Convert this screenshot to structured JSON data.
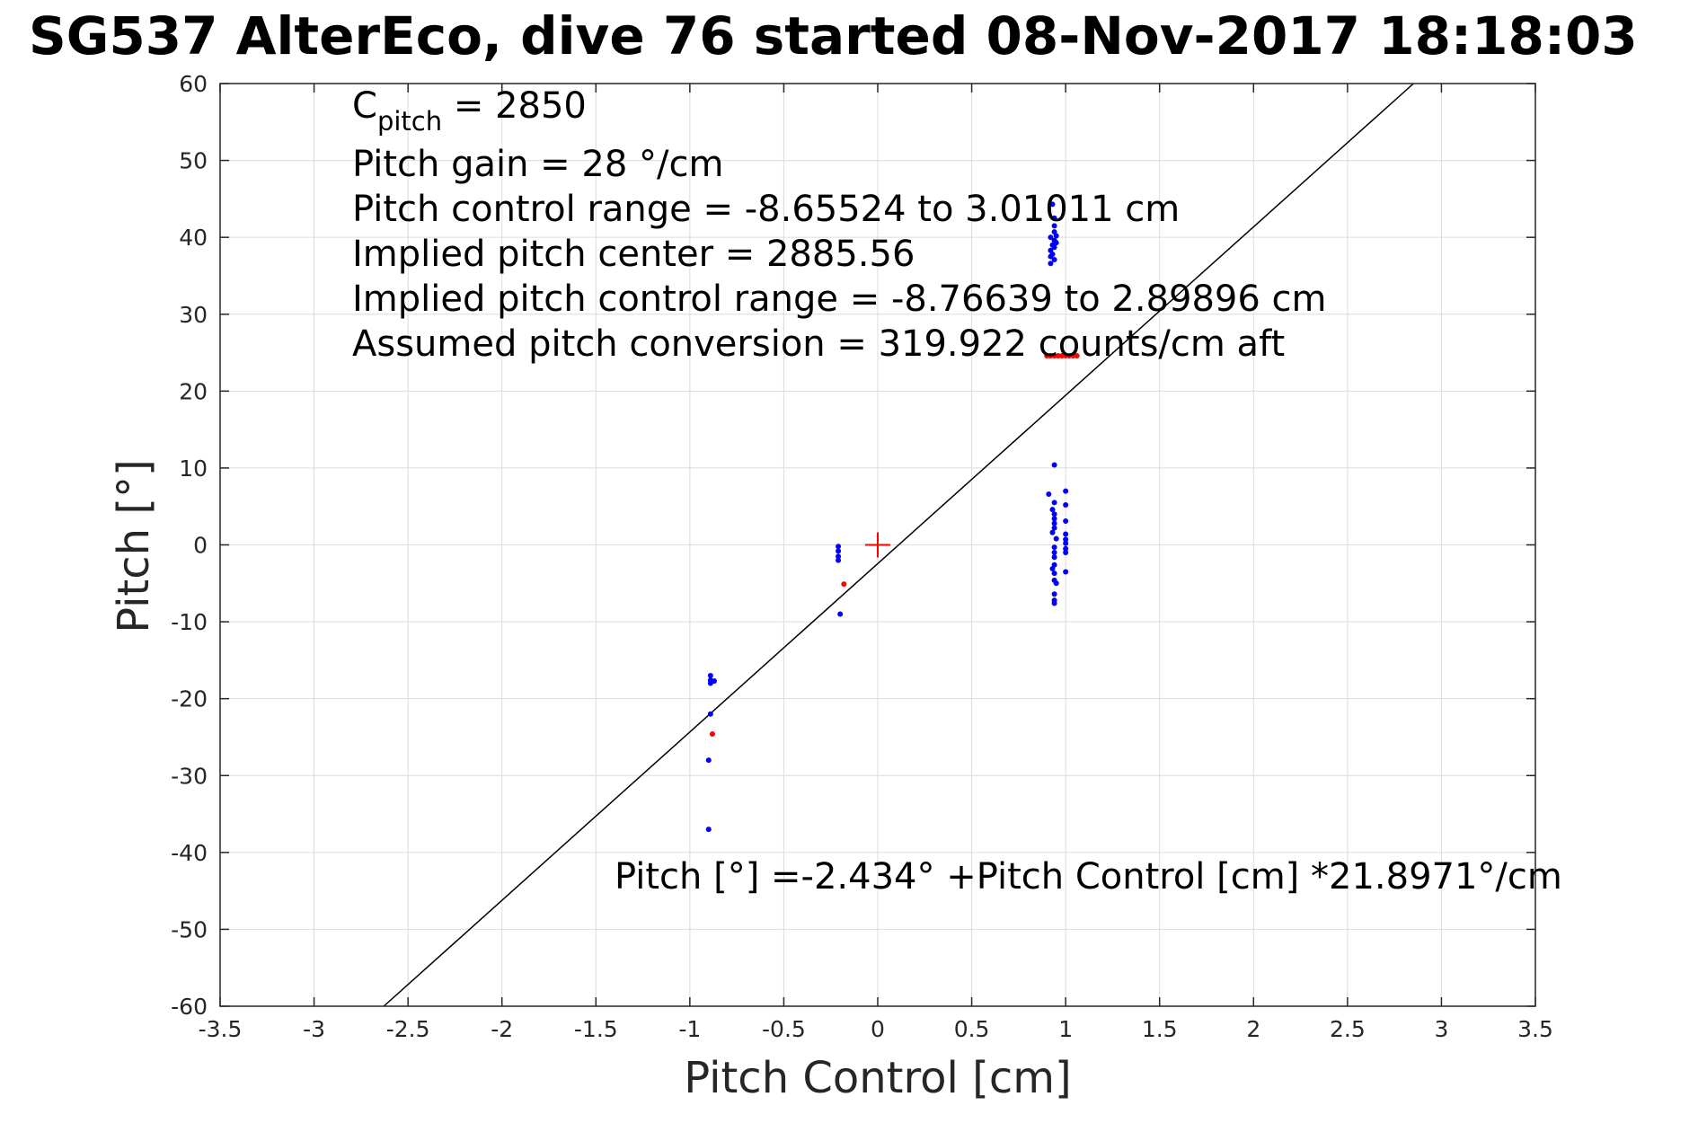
{
  "chart_data": {
    "type": "scatter",
    "title": "SG537 AlterEco, dive 76 started 08-Nov-2017 18:18:03",
    "xlabel": "Pitch Control [cm]",
    "ylabel": "Pitch [°]",
    "xlim": [
      -3.5,
      3.5
    ],
    "ylim": [
      -60,
      60
    ],
    "grid": true,
    "x_ticks": [
      -3.5,
      -3,
      -2.5,
      -2,
      -1.5,
      -1,
      -0.5,
      0,
      0.5,
      1,
      1.5,
      2,
      2.5,
      3,
      3.5
    ],
    "x_tick_labels": [
      "-3.5",
      "-3",
      "-2.5",
      "-2",
      "-1.5",
      "-1",
      "-0.5",
      "0",
      "0.5",
      "1",
      "1.5",
      "2",
      "2.5",
      "3",
      "3.5"
    ],
    "y_ticks": [
      60,
      50,
      40,
      30,
      20,
      10,
      0,
      -10,
      -20,
      -30,
      -40,
      -50,
      -60
    ],
    "y_tick_labels": [
      "60",
      "50",
      "40",
      "30",
      "20",
      "10",
      "0",
      "-10",
      "-20",
      "-30",
      "-40",
      "-50",
      "-60"
    ],
    "annotations": {
      "c_pitch_main": "C",
      "c_pitch_sub": "pitch",
      "c_pitch_value": " = 2850",
      "line2": "Pitch gain = 28 °/cm",
      "line3": "Pitch control range = -8.65524 to 3.01011 cm",
      "line4": "Implied pitch center = 2885.56",
      "line5": "Implied pitch control range = -8.76639 to 2.89896 cm",
      "line6": "Assumed pitch conversion = 319.922 counts/cm aft",
      "fit_equation": "Pitch [°] =-2.434° +Pitch Control [cm] *21.8971°/cm"
    },
    "fit_line": {
      "intercept": -2.434,
      "slope": 21.8971,
      "color": "#000000"
    },
    "center_marker": {
      "x": 0,
      "y": 0,
      "color": "#ff0000"
    },
    "series": [
      {
        "color": "#0000ff",
        "points": [
          [
            -0.89,
            -17
          ],
          [
            -0.89,
            -17.6
          ],
          [
            -0.87,
            -17.7
          ],
          [
            -0.89,
            -18
          ],
          [
            -0.89,
            -22
          ],
          [
            -0.9,
            -28
          ],
          [
            -0.9,
            -37
          ],
          [
            -0.21,
            -0.2
          ],
          [
            -0.21,
            -0.8
          ],
          [
            -0.21,
            -1.5
          ],
          [
            -0.21,
            -2
          ],
          [
            -0.2,
            -9
          ],
          [
            0.93,
            44.3
          ],
          [
            0.94,
            42.5
          ],
          [
            0.94,
            41.5
          ],
          [
            0.94,
            40.7
          ],
          [
            0.95,
            40.2
          ],
          [
            0.92,
            40
          ],
          [
            0.94,
            39.6
          ],
          [
            0.95,
            39.3
          ],
          [
            0.93,
            39
          ],
          [
            0.94,
            38.7
          ],
          [
            0.92,
            38.3
          ],
          [
            0.93,
            37.8
          ],
          [
            0.92,
            37.5
          ],
          [
            0.94,
            37.1
          ],
          [
            0.92,
            36.6
          ],
          [
            0.94,
            10.4
          ],
          [
            0.91,
            6.6
          ],
          [
            1.0,
            7.0
          ],
          [
            0.94,
            5.5
          ],
          [
            1.0,
            5.2
          ],
          [
            0.93,
            4.6
          ],
          [
            0.94,
            4.0
          ],
          [
            0.94,
            3.4
          ],
          [
            1.0,
            3.1
          ],
          [
            0.94,
            2.8
          ],
          [
            0.94,
            2.2
          ],
          [
            0.93,
            1.6
          ],
          [
            1.0,
            1.4
          ],
          [
            0.95,
            0.8
          ],
          [
            1.0,
            0.7
          ],
          [
            1.0,
            0.2
          ],
          [
            0.94,
            -0.3
          ],
          [
            1.0,
            -0.5
          ],
          [
            0.94,
            -1.0
          ],
          [
            1.0,
            -1.0
          ],
          [
            0.94,
            -1.6
          ],
          [
            0.94,
            -2.6
          ],
          [
            0.93,
            -3.1
          ],
          [
            1.0,
            -3.5
          ],
          [
            0.94,
            -3.7
          ],
          [
            0.94,
            -4.6
          ],
          [
            0.95,
            -5.0
          ],
          [
            0.94,
            -6.4
          ],
          [
            0.94,
            -7.2
          ],
          [
            0.94,
            -7.6
          ]
        ]
      },
      {
        "color": "#ff0000",
        "points": [
          [
            -0.88,
            -24.6
          ],
          [
            -0.18,
            -5.1
          ],
          [
            0.9,
            24.6
          ],
          [
            0.92,
            24.6
          ],
          [
            0.94,
            24.6
          ],
          [
            0.96,
            24.6
          ],
          [
            0.98,
            24.6
          ],
          [
            1.0,
            24.6
          ],
          [
            1.02,
            24.6
          ],
          [
            1.04,
            24.6
          ],
          [
            1.06,
            24.6
          ]
        ]
      }
    ]
  }
}
